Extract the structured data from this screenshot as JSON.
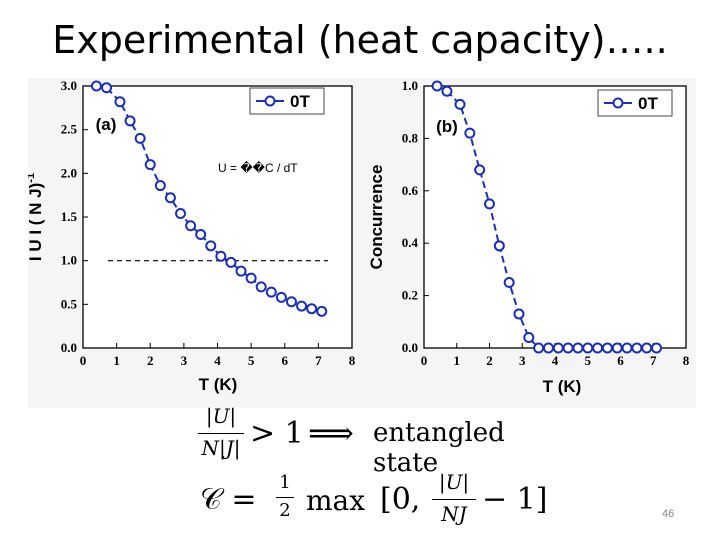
{
  "slide": {
    "title": "Experimental  (heat capacity)…..",
    "page_number": "46"
  },
  "chart_data": [
    {
      "type": "line",
      "panel_label": "(a)",
      "xlabel": "T (K)",
      "ylabel": "I U I ( N J)",
      "ylabel_sup": "-1",
      "xlim": [
        0,
        8
      ],
      "ylim": [
        0,
        3.0
      ],
      "x_ticks": [
        "0",
        "1",
        "2",
        "3",
        "4",
        "5",
        "6",
        "7",
        "8"
      ],
      "y_ticks": [
        "0.0",
        "0.5",
        "1.0",
        "1.5",
        "2.0",
        "2.5",
        "3.0"
      ],
      "legend": {
        "label": "0T",
        "position": "top-right"
      },
      "annotation": "U = ��C / dT",
      "reference_line": {
        "y": 1.0,
        "style": "dashed"
      },
      "series": [
        {
          "name": "0T",
          "color": "#1a2fb8",
          "x": [
            0.4,
            0.7,
            1.1,
            1.4,
            1.7,
            2.0,
            2.3,
            2.6,
            2.9,
            3.2,
            3.5,
            3.8,
            4.1,
            4.4,
            4.7,
            5.0,
            5.3,
            5.6,
            5.9,
            6.2,
            6.5,
            6.8,
            7.1
          ],
          "y": [
            3.0,
            2.98,
            2.82,
            2.6,
            2.4,
            2.1,
            1.86,
            1.72,
            1.54,
            1.4,
            1.3,
            1.17,
            1.05,
            0.98,
            0.88,
            0.8,
            0.7,
            0.64,
            0.58,
            0.53,
            0.48,
            0.45,
            0.42
          ]
        }
      ]
    },
    {
      "type": "line",
      "panel_label": "(b)",
      "xlabel": "T (K)",
      "ylabel": "Concurrence",
      "xlim": [
        0,
        8
      ],
      "ylim": [
        0,
        1.0
      ],
      "x_ticks": [
        "0",
        "1",
        "2",
        "3",
        "4",
        "5",
        "6",
        "7",
        "8"
      ],
      "y_ticks": [
        "0.0",
        "0.2",
        "0.4",
        "0.6",
        "0.8",
        "1.0"
      ],
      "legend": {
        "label": "0T",
        "position": "top-right"
      },
      "series": [
        {
          "name": "0T",
          "color": "#1a2fb8",
          "x": [
            0.4,
            0.7,
            1.1,
            1.4,
            1.7,
            2.0,
            2.3,
            2.6,
            2.9,
            3.2,
            3.5,
            3.8,
            4.1,
            4.4,
            4.7,
            5.0,
            5.3,
            5.6,
            5.9,
            6.2,
            6.5,
            6.8,
            7.1
          ],
          "y": [
            1.0,
            0.98,
            0.93,
            0.82,
            0.68,
            0.55,
            0.39,
            0.25,
            0.13,
            0.04,
            0.0,
            0.0,
            0.0,
            0.0,
            0.0,
            0.0,
            0.0,
            0.0,
            0.0,
            0.0,
            0.0,
            0.0,
            0.0
          ]
        }
      ]
    }
  ],
  "equations": {
    "eq1": {
      "num": "|U|",
      "den": "N|J|",
      "rel": "> 1",
      "arrow": "⟹",
      "text": "entangled state"
    },
    "eq2": {
      "lhs": "𝒞 =",
      "half_num": "1",
      "half_den": "2",
      "fn": "max",
      "open": "[0,",
      "num": "|U|",
      "den": "NJ",
      "close": "− 1]"
    }
  }
}
